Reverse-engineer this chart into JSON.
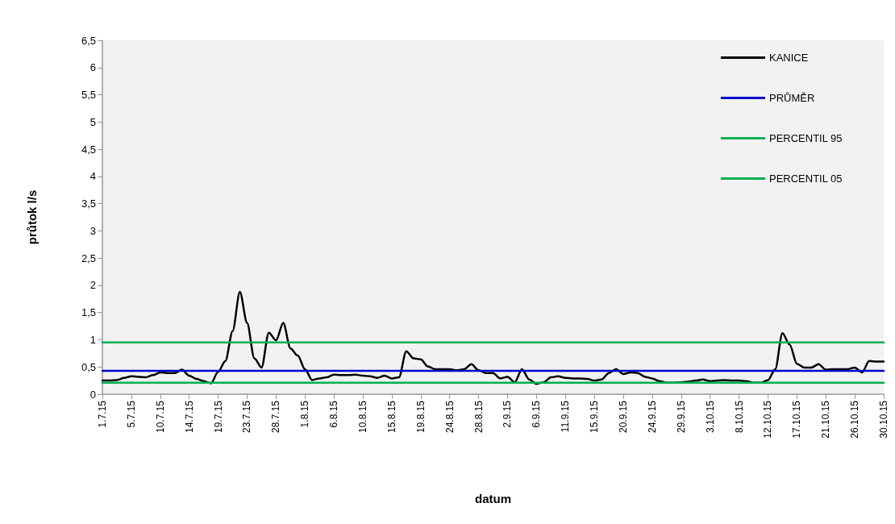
{
  "chart_data": {
    "type": "line",
    "xlabel": "datum",
    "ylabel": "průtok l/s",
    "categories": [
      "1.7.15",
      null,
      null,
      null,
      "5.7.15",
      null,
      null,
      null,
      "10.7.15",
      null,
      null,
      null,
      "14.7.15",
      null,
      null,
      null,
      "19.7.15",
      null,
      null,
      null,
      "23.7.15",
      null,
      null,
      null,
      "28.7.15",
      null,
      null,
      null,
      "1.8.15",
      null,
      null,
      null,
      "6.8.15",
      null,
      null,
      null,
      "10.8.15",
      null,
      null,
      null,
      "15.8.15",
      null,
      null,
      null,
      "19.8.15",
      null,
      null,
      null,
      "24.8.15",
      null,
      null,
      null,
      "28.8.15",
      null,
      null,
      null,
      "2.9.15",
      null,
      null,
      null,
      "6.9.15",
      null,
      null,
      null,
      "11.9.15",
      null,
      null,
      null,
      "15.9.15",
      null,
      null,
      null,
      "20.9.15",
      null,
      null,
      null,
      "24.9.15",
      null,
      null,
      null,
      "29.9.15",
      null,
      null,
      null,
      "3.10.15",
      null,
      null,
      null,
      "8.10.15",
      null,
      null,
      null,
      "12.10.15",
      null,
      null,
      null,
      "17.10.15",
      null,
      null,
      null,
      "21.10.15",
      null,
      null,
      null,
      "26.10.15",
      null,
      null,
      null,
      "30.10.15"
    ],
    "series": [
      {
        "name": "KANICE",
        "color": "#000000",
        "values": [
          0.25,
          0.25,
          0.26,
          0.3,
          0.33,
          0.32,
          0.31,
          0.35,
          0.4,
          0.39,
          0.39,
          0.45,
          0.34,
          0.28,
          0.24,
          0.2,
          0.41,
          0.61,
          1.16,
          1.88,
          1.31,
          0.66,
          0.49,
          1.13,
          0.99,
          1.31,
          0.84,
          0.71,
          0.46,
          0.26,
          0.29,
          0.31,
          0.36,
          0.35,
          0.35,
          0.36,
          0.34,
          0.33,
          0.3,
          0.34,
          0.29,
          0.31,
          0.79,
          0.66,
          0.64,
          0.51,
          0.46,
          0.46,
          0.46,
          0.44,
          0.46,
          0.55,
          0.44,
          0.39,
          0.39,
          0.29,
          0.32,
          0.22,
          0.46,
          0.27,
          0.19,
          0.22,
          0.31,
          0.33,
          0.3,
          0.29,
          0.29,
          0.28,
          0.25,
          0.27,
          0.39,
          0.46,
          0.37,
          0.4,
          0.39,
          0.32,
          0.29,
          0.24,
          0.21,
          0.21,
          0.22,
          0.23,
          0.25,
          0.27,
          0.24,
          0.25,
          0.26,
          0.25,
          0.25,
          0.24,
          0.21,
          0.21,
          0.26,
          0.46,
          1.12,
          0.91,
          0.56,
          0.49,
          0.49,
          0.55,
          0.45,
          0.46,
          0.46,
          0.46,
          0.49,
          0.4,
          0.61,
          0.6,
          0.6
        ]
      },
      {
        "name": "PRŮMĚR",
        "color": "#0000cc",
        "values": [
          0.43,
          0.43,
          0.43,
          0.43,
          0.43,
          0.43,
          0.43,
          0.43,
          0.43,
          0.43,
          0.43,
          0.43,
          0.43,
          0.43,
          0.43,
          0.43,
          0.43,
          0.43,
          0.43,
          0.43,
          0.43,
          0.43,
          0.43,
          0.43,
          0.43,
          0.43,
          0.43,
          0.43,
          0.43,
          0.43,
          0.43,
          0.43,
          0.43,
          0.43,
          0.43,
          0.43,
          0.43,
          0.43,
          0.43,
          0.43,
          0.43,
          0.43,
          0.43,
          0.43,
          0.43,
          0.43,
          0.43,
          0.43,
          0.43,
          0.43,
          0.43,
          0.43,
          0.43,
          0.43,
          0.43,
          0.43,
          0.43,
          0.43,
          0.43,
          0.43,
          0.43,
          0.43,
          0.43,
          0.43,
          0.43,
          0.43,
          0.43,
          0.43,
          0.43,
          0.43,
          0.43,
          0.43,
          0.43,
          0.43,
          0.43,
          0.43,
          0.43,
          0.43,
          0.43,
          0.43,
          0.43,
          0.43,
          0.43,
          0.43,
          0.43,
          0.43,
          0.43,
          0.43,
          0.43,
          0.43,
          0.43,
          0.43,
          0.43,
          0.43,
          0.43,
          0.43,
          0.43,
          0.43,
          0.43,
          0.43,
          0.43,
          0.43,
          0.43,
          0.43,
          0.43,
          0.43,
          0.43,
          0.43,
          0.43
        ]
      },
      {
        "name": "PERCENTIL 95",
        "color": "#00b050",
        "values": [
          0.95,
          0.95,
          0.95,
          0.95,
          0.95,
          0.95,
          0.95,
          0.95,
          0.95,
          0.95,
          0.95,
          0.95,
          0.95,
          0.95,
          0.95,
          0.95,
          0.95,
          0.95,
          0.95,
          0.95,
          0.95,
          0.95,
          0.95,
          0.95,
          0.95,
          0.95,
          0.95,
          0.95,
          0.95,
          0.95,
          0.95,
          0.95,
          0.95,
          0.95,
          0.95,
          0.95,
          0.95,
          0.95,
          0.95,
          0.95,
          0.95,
          0.95,
          0.95,
          0.95,
          0.95,
          0.95,
          0.95,
          0.95,
          0.95,
          0.95,
          0.95,
          0.95,
          0.95,
          0.95,
          0.95,
          0.95,
          0.95,
          0.95,
          0.95,
          0.95,
          0.95,
          0.95,
          0.95,
          0.95,
          0.95,
          0.95,
          0.95,
          0.95,
          0.95,
          0.95,
          0.95,
          0.95,
          0.95,
          0.95,
          0.95,
          0.95,
          0.95,
          0.95,
          0.95,
          0.95,
          0.95,
          0.95,
          0.95,
          0.95,
          0.95,
          0.95,
          0.95,
          0.95,
          0.95,
          0.95,
          0.95,
          0.95,
          0.95,
          0.95,
          0.95,
          0.95,
          0.95,
          0.95,
          0.95,
          0.95,
          0.95,
          0.95,
          0.95,
          0.95,
          0.95,
          0.95,
          0.95,
          0.95,
          0.95
        ]
      },
      {
        "name": "PERCENTIL 05",
        "color": "#00b050",
        "values": [
          0.21,
          0.21,
          0.21,
          0.21,
          0.21,
          0.21,
          0.21,
          0.21,
          0.21,
          0.21,
          0.21,
          0.21,
          0.21,
          0.21,
          0.21,
          0.21,
          0.21,
          0.21,
          0.21,
          0.21,
          0.21,
          0.21,
          0.21,
          0.21,
          0.21,
          0.21,
          0.21,
          0.21,
          0.21,
          0.21,
          0.21,
          0.21,
          0.21,
          0.21,
          0.21,
          0.21,
          0.21,
          0.21,
          0.21,
          0.21,
          0.21,
          0.21,
          0.21,
          0.21,
          0.21,
          0.21,
          0.21,
          0.21,
          0.21,
          0.21,
          0.21,
          0.21,
          0.21,
          0.21,
          0.21,
          0.21,
          0.21,
          0.21,
          0.21,
          0.21,
          0.21,
          0.21,
          0.21,
          0.21,
          0.21,
          0.21,
          0.21,
          0.21,
          0.21,
          0.21,
          0.21,
          0.21,
          0.21,
          0.21,
          0.21,
          0.21,
          0.21,
          0.21,
          0.21,
          0.21,
          0.21,
          0.21,
          0.21,
          0.21,
          0.21,
          0.21,
          0.21,
          0.21,
          0.21,
          0.21,
          0.21,
          0.21,
          0.21,
          0.21,
          0.21,
          0.21,
          0.21,
          0.21,
          0.21,
          0.21,
          0.21,
          0.21,
          0.21,
          0.21,
          0.21,
          0.21,
          0.21,
          0.21,
          0.21
        ]
      }
    ],
    "ylim": [
      0,
      6.5
    ],
    "yticks": [
      0,
      {
        "value": 0.5,
        "label": "0,5"
      },
      1,
      {
        "value": 1.5,
        "label": "1,5"
      },
      2,
      {
        "value": 2.5,
        "label": "2,5"
      },
      3,
      {
        "value": 3.5,
        "label": "3,5"
      },
      4,
      {
        "value": 4.5,
        "label": "4,5"
      },
      5,
      {
        "value": 5.5,
        "label": "5,5"
      },
      6,
      {
        "value": 6.5,
        "label": "6,5"
      }
    ],
    "grid": false,
    "legend": "top right",
    "marker": "none",
    "line_style": "solid"
  }
}
